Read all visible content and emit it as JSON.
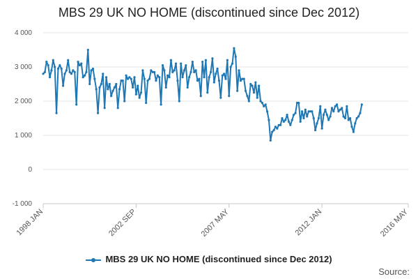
{
  "chart_data": {
    "type": "line",
    "title": "MBS 29 UK NO HOME (discontinued since Dec 2012)",
    "xlabel": "",
    "ylabel": "",
    "ylim": [
      -1000,
      4000
    ],
    "yticks": [
      -1000,
      0,
      1000,
      2000,
      3000,
      4000
    ],
    "ytick_labels": [
      "-1 000",
      "0",
      "1 000",
      "2 000",
      "3 000",
      "4 000"
    ],
    "xlim": [
      "1998-01",
      "2016-05"
    ],
    "xticks": [
      "1998-01",
      "2002-09",
      "2007-05",
      "2012-01",
      "2016-05"
    ],
    "xtick_labels": [
      "1998 JAN",
      "2002 SEP",
      "2007 MAY",
      "2012 JAN",
      "2016 MAY"
    ],
    "grid": "horizontal",
    "legend_position": "bottom",
    "series": [
      {
        "name": "MBS 29 UK NO HOME (discontinued since Dec 2012)",
        "color": "#1f77b4",
        "start": "1998-01",
        "frequency": "monthly",
        "values": [
          2800,
          2850,
          3150,
          3050,
          2700,
          2900,
          3200,
          3000,
          1650,
          2950,
          3050,
          2950,
          2450,
          2800,
          2900,
          3200,
          2850,
          2800,
          2900,
          2850,
          1900,
          3150,
          3050,
          3100,
          2700,
          2750,
          2850,
          3500,
          2500,
          2900,
          2950,
          2650,
          2350,
          1650,
          2400,
          2500,
          2800,
          1800,
          2700,
          2350,
          2500,
          2150,
          2300,
          2400,
          2500,
          1800,
          2350,
          2600,
          2600,
          2000,
          2750,
          2650,
          2700,
          2650,
          2400,
          2700,
          2200,
          2450,
          2100,
          2250,
          2900,
          2650,
          1950,
          2600,
          2650,
          2900,
          2850,
          2850,
          2600,
          2750,
          2700,
          1900,
          3050,
          2900,
          2400,
          2750,
          2700,
          3200,
          2850,
          2900,
          3100,
          2600,
          2000,
          3100,
          2700,
          2900,
          3050,
          2400,
          2700,
          2850,
          3150,
          2850,
          2900,
          2600,
          2650,
          2150,
          3150,
          2700,
          3200,
          2250,
          2700,
          2850,
          3250,
          2550,
          2800,
          2950,
          2600,
          2100,
          2750,
          2800,
          2650,
          3200,
          2150,
          3000,
          3100,
          3550,
          3300,
          2300,
          2900,
          2600,
          2650,
          2650,
          2300,
          2150,
          2000,
          2500,
          2450,
          2250,
          2550,
          2100,
          2450,
          2000,
          1950,
          1850,
          1900,
          1700,
          1450,
          850,
          1100,
          1150,
          1250,
          1200,
          1300,
          1300,
          1500,
          1400,
          1450,
          1600,
          1400,
          1300,
          1450,
          1600,
          1650,
          1950,
          1950,
          1400,
          1700,
          1500,
          1750,
          1550,
          1700,
          1700,
          1700,
          1500,
          1150,
          1350,
          1500,
          1850,
          1200,
          1600,
          1750,
          1600,
          1450,
          1550,
          1800,
          1700,
          1850,
          1900,
          1700,
          1750,
          1800,
          1550,
          1500,
          1850,
          1450,
          1500,
          1250,
          1100,
          1350,
          1500,
          1550,
          1650,
          1900
        ]
      }
    ]
  },
  "legend": {
    "label": "MBS 29 UK NO HOME (discontinued since Dec 2012)"
  },
  "source_label": "Source:"
}
